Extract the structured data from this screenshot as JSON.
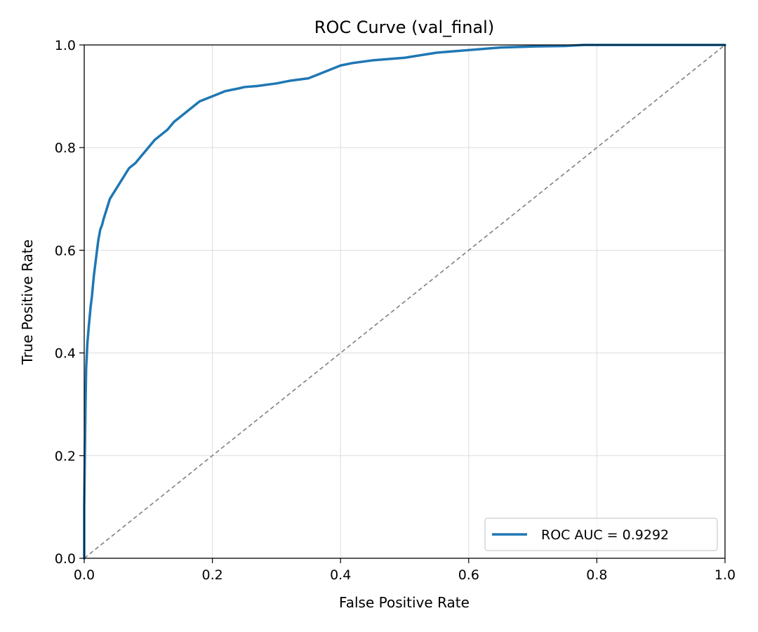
{
  "chart_data": {
    "type": "line",
    "title": "ROC Curve (val_final)",
    "xlabel": "False Positive Rate",
    "ylabel": "True Positive Rate",
    "xlim": [
      0.0,
      1.0
    ],
    "ylim": [
      0.0,
      1.0
    ],
    "xticks": [
      "0.0",
      "0.2",
      "0.4",
      "0.6",
      "0.8",
      "1.0"
    ],
    "yticks": [
      "0.0",
      "0.2",
      "0.4",
      "0.6",
      "0.8",
      "1.0"
    ],
    "grid": true,
    "legend_position": "lower-right",
    "series": [
      {
        "name": "ROC AUC = 0.9292",
        "color": "#1f77b4",
        "x": [
          0.0,
          0.0,
          0.001,
          0.002,
          0.003,
          0.005,
          0.007,
          0.01,
          0.012,
          0.015,
          0.018,
          0.02,
          0.022,
          0.025,
          0.028,
          0.03,
          0.035,
          0.04,
          0.045,
          0.05,
          0.055,
          0.06,
          0.065,
          0.07,
          0.08,
          0.09,
          0.1,
          0.11,
          0.12,
          0.13,
          0.14,
          0.15,
          0.16,
          0.17,
          0.18,
          0.19,
          0.2,
          0.21,
          0.22,
          0.24,
          0.25,
          0.27,
          0.3,
          0.32,
          0.35,
          0.37,
          0.4,
          0.42,
          0.45,
          0.5,
          0.55,
          0.6,
          0.65,
          0.7,
          0.75,
          0.78,
          0.85,
          1.0
        ],
        "y": [
          0.0,
          0.1,
          0.2,
          0.3,
          0.37,
          0.42,
          0.45,
          0.49,
          0.51,
          0.55,
          0.58,
          0.6,
          0.62,
          0.64,
          0.65,
          0.66,
          0.68,
          0.7,
          0.71,
          0.72,
          0.73,
          0.74,
          0.75,
          0.76,
          0.77,
          0.785,
          0.8,
          0.815,
          0.825,
          0.835,
          0.85,
          0.86,
          0.87,
          0.88,
          0.89,
          0.895,
          0.9,
          0.905,
          0.91,
          0.915,
          0.918,
          0.92,
          0.925,
          0.93,
          0.935,
          0.945,
          0.96,
          0.965,
          0.97,
          0.975,
          0.985,
          0.99,
          0.995,
          0.997,
          0.998,
          1.0,
          1.0,
          1.0
        ]
      },
      {
        "name": "",
        "color": "#808080",
        "style": "dashed",
        "x": [
          0.0,
          1.0
        ],
        "y": [
          0.0,
          1.0
        ]
      }
    ]
  }
}
